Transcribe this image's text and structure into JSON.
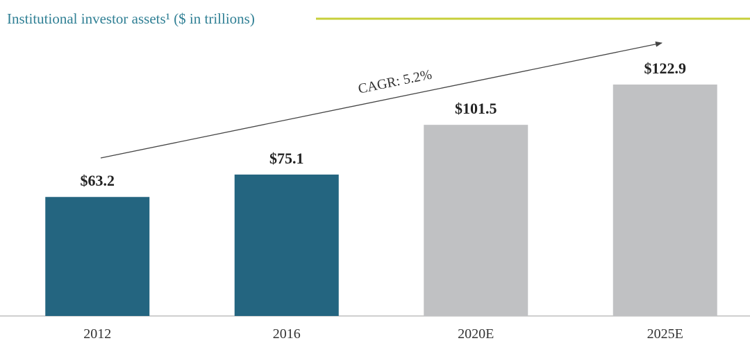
{
  "chart_data": {
    "type": "bar",
    "title": "Institutional investor assets¹ ($ in trillions)",
    "categories": [
      "2012",
      "2016",
      "2020E",
      "2025E"
    ],
    "values": [
      63.2,
      75.1,
      101.5,
      122.9
    ],
    "value_labels": [
      "$63.2",
      "$75.1",
      "$101.5",
      "$122.9"
    ],
    "colors": [
      "#246580",
      "#246580",
      "#c0c1c3",
      "#c0c1c3"
    ],
    "annotation": "CAGR: 5.2%"
  }
}
